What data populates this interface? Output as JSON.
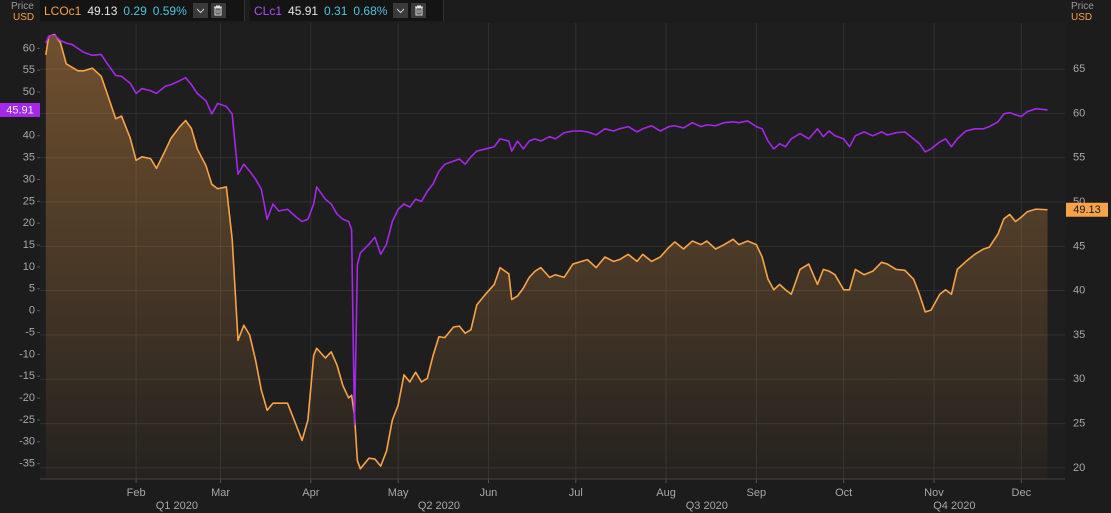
{
  "chart_data": {
    "type": "line",
    "x": [
      0,
      1,
      3,
      5,
      7,
      9,
      11,
      13,
      16,
      19,
      21,
      24,
      26,
      29,
      31,
      33,
      36,
      38,
      41,
      43,
      46,
      48,
      50,
      52,
      55,
      57,
      59,
      62,
      64,
      66,
      68,
      70,
      72,
      74,
      76,
      78,
      80,
      83,
      86,
      88,
      90,
      92,
      93,
      96,
      98,
      100,
      102,
      104,
      105,
      106,
      107,
      108,
      111,
      113,
      115,
      117,
      119,
      121,
      123,
      125,
      127,
      129,
      131,
      133,
      135,
      137,
      140,
      142,
      144,
      146,
      148,
      151,
      154,
      156,
      159,
      160,
      162,
      164,
      166,
      168,
      170,
      173,
      175,
      178,
      181,
      184,
      186,
      189,
      192,
      195,
      197,
      200,
      203,
      205,
      208,
      211,
      214,
      216,
      219,
      222,
      225,
      227,
      230,
      233,
      236,
      238,
      241,
      244,
      246,
      248,
      250,
      252,
      254,
      256,
      259,
      262,
      265,
      267,
      269,
      271,
      274,
      276,
      278,
      281,
      284,
      287,
      289,
      292,
      295,
      298,
      300,
      302,
      304,
      307,
      309,
      311,
      313,
      316,
      319,
      322,
      324,
      327,
      329,
      331,
      333,
      335,
      337,
      340,
      344
    ],
    "xlim": [
      -2,
      350
    ],
    "xticks": [
      {
        "value": 31,
        "label": "Feb"
      },
      {
        "value": 60,
        "label": "Mar"
      },
      {
        "value": 91,
        "label": "Apr"
      },
      {
        "value": 121,
        "label": "May"
      },
      {
        "value": 152,
        "label": "Jun"
      },
      {
        "value": 182,
        "label": "Jul"
      },
      {
        "value": 213,
        "label": "Aug"
      },
      {
        "value": 244,
        "label": "Sep"
      },
      {
        "value": 274,
        "label": "Oct"
      },
      {
        "value": 305,
        "label": "Nov"
      },
      {
        "value": 335,
        "label": "Dec"
      }
    ],
    "xticks_secondary": [
      {
        "value": 45,
        "label": "Q1 2020"
      },
      {
        "value": 135,
        "label": "Q2 2020"
      },
      {
        "value": 227,
        "label": "Q3 2020"
      },
      {
        "value": 312,
        "label": "Q4 2020"
      }
    ],
    "y_axis_label": "Price",
    "y_unit": "USD",
    "y2_axis_label": "Price",
    "y2_unit": "USD",
    "ylim": [
      -38.5,
      65.8
    ],
    "yticks": [
      60,
      55,
      50,
      45,
      40,
      35,
      30,
      25,
      20,
      15,
      10,
      5,
      0,
      -5,
      -10,
      -15,
      -20,
      -25,
      -30,
      -35
    ],
    "y2lim": [
      18.75,
      70.2
    ],
    "y2ticks": [
      65,
      60,
      55,
      50,
      45,
      40,
      35,
      30,
      25,
      20
    ],
    "grid": true,
    "series": [
      {
        "name": "LCOc1",
        "color": "#f7a349",
        "axis": "y2",
        "fill": true,
        "change": 0.29,
        "change_pct": "0.59%",
        "values": [
          66.6,
          68.7,
          68.9,
          68.0,
          65.6,
          65.2,
          64.8,
          64.8,
          65.1,
          64.2,
          62.3,
          59.4,
          59.7,
          57.2,
          54.7,
          55.1,
          54.9,
          53.8,
          55.8,
          57.2,
          58.5,
          59.2,
          58.3,
          56.0,
          54.1,
          52.0,
          51.5,
          51.7,
          45.8,
          34.4,
          36.1,
          35.0,
          32.2,
          28.8,
          26.5,
          27.3,
          27.3,
          27.3,
          24.8,
          23.1,
          25.4,
          32.7,
          33.5,
          32.4,
          33.1,
          31.6,
          29.3,
          27.9,
          28.2,
          25.9,
          20.8,
          19.9,
          21.1,
          21.0,
          20.2,
          21.9,
          25.4,
          27.1,
          30.5,
          29.7,
          30.8,
          29.7,
          30.1,
          32.7,
          34.8,
          34.7,
          35.9,
          36.0,
          35.2,
          35.6,
          38.4,
          39.6,
          40.7,
          42.6,
          41.9,
          39.0,
          39.4,
          40.3,
          41.5,
          42.2,
          42.6,
          41.5,
          41.8,
          41.5,
          43.0,
          43.3,
          43.5,
          42.6,
          43.8,
          43.3,
          43.5,
          44.1,
          43.3,
          44.1,
          43.3,
          43.8,
          44.9,
          45.5,
          44.7,
          45.6,
          45.2,
          45.6,
          44.7,
          45.2,
          45.8,
          45.2,
          45.6,
          45.2,
          43.8,
          41.3,
          40.1,
          40.7,
          40.1,
          39.6,
          42.4,
          43.0,
          40.7,
          42.4,
          42.2,
          41.8,
          40.1,
          40.1,
          42.4,
          41.8,
          42.2,
          43.2,
          43.0,
          42.4,
          42.3,
          41.3,
          39.6,
          37.6,
          37.8,
          39.6,
          40.1,
          39.6,
          42.4,
          43.3,
          44.1,
          44.7,
          44.9,
          46.4,
          48.1,
          48.6,
          47.8,
          48.3,
          48.9,
          49.2,
          49.13
        ]
      },
      {
        "name": "CLc1",
        "color": "#a428e8",
        "axis": "y",
        "change": 0.31,
        "change_pct": "0.68%",
        "values": [
          61.2,
          62.8,
          63.0,
          61.8,
          61.2,
          60.9,
          60.0,
          59.1,
          58.4,
          58.6,
          56.6,
          53.8,
          53.6,
          52.0,
          49.7,
          50.8,
          50.3,
          49.7,
          51.3,
          51.7,
          52.6,
          53.3,
          51.7,
          49.7,
          48.0,
          45.0,
          47.4,
          46.7,
          45.0,
          31.2,
          33.5,
          31.9,
          30.1,
          27.8,
          20.9,
          24.4,
          22.8,
          23.2,
          21.4,
          20.4,
          20.9,
          24.4,
          28.3,
          25.5,
          24.4,
          22.1,
          20.9,
          20.4,
          18.6,
          -26,
          10.5,
          13.2,
          15.2,
          16.8,
          12.9,
          15.2,
          20.4,
          23.2,
          24.4,
          23.7,
          25.5,
          25.0,
          27.3,
          29.0,
          31.9,
          33.5,
          34.2,
          34.7,
          33.5,
          35.2,
          36.5,
          37.0,
          37.5,
          39.3,
          38.8,
          36.5,
          38.8,
          37.0,
          38.8,
          39.3,
          38.8,
          39.8,
          39.3,
          40.7,
          41.1,
          41.1,
          40.9,
          40.2,
          41.6,
          41.1,
          41.6,
          42.1,
          40.9,
          41.6,
          42.3,
          41.1,
          42.1,
          42.3,
          41.8,
          43.0,
          42.1,
          42.5,
          42.3,
          43.0,
          43.2,
          43.0,
          43.4,
          42.1,
          41.6,
          38.8,
          37.0,
          38.2,
          37.5,
          39.3,
          40.5,
          39.3,
          41.6,
          39.8,
          41.1,
          40.0,
          39.3,
          37.5,
          40.0,
          40.9,
          40.0,
          40.9,
          40.2,
          40.7,
          40.9,
          39.3,
          38.2,
          36.3,
          37.0,
          38.6,
          39.3,
          37.5,
          39.3,
          41.1,
          41.6,
          41.6,
          42.1,
          43.2,
          45.0,
          45.3,
          44.8,
          44.4,
          45.5,
          46.2,
          45.91
        ]
      }
    ]
  }
}
